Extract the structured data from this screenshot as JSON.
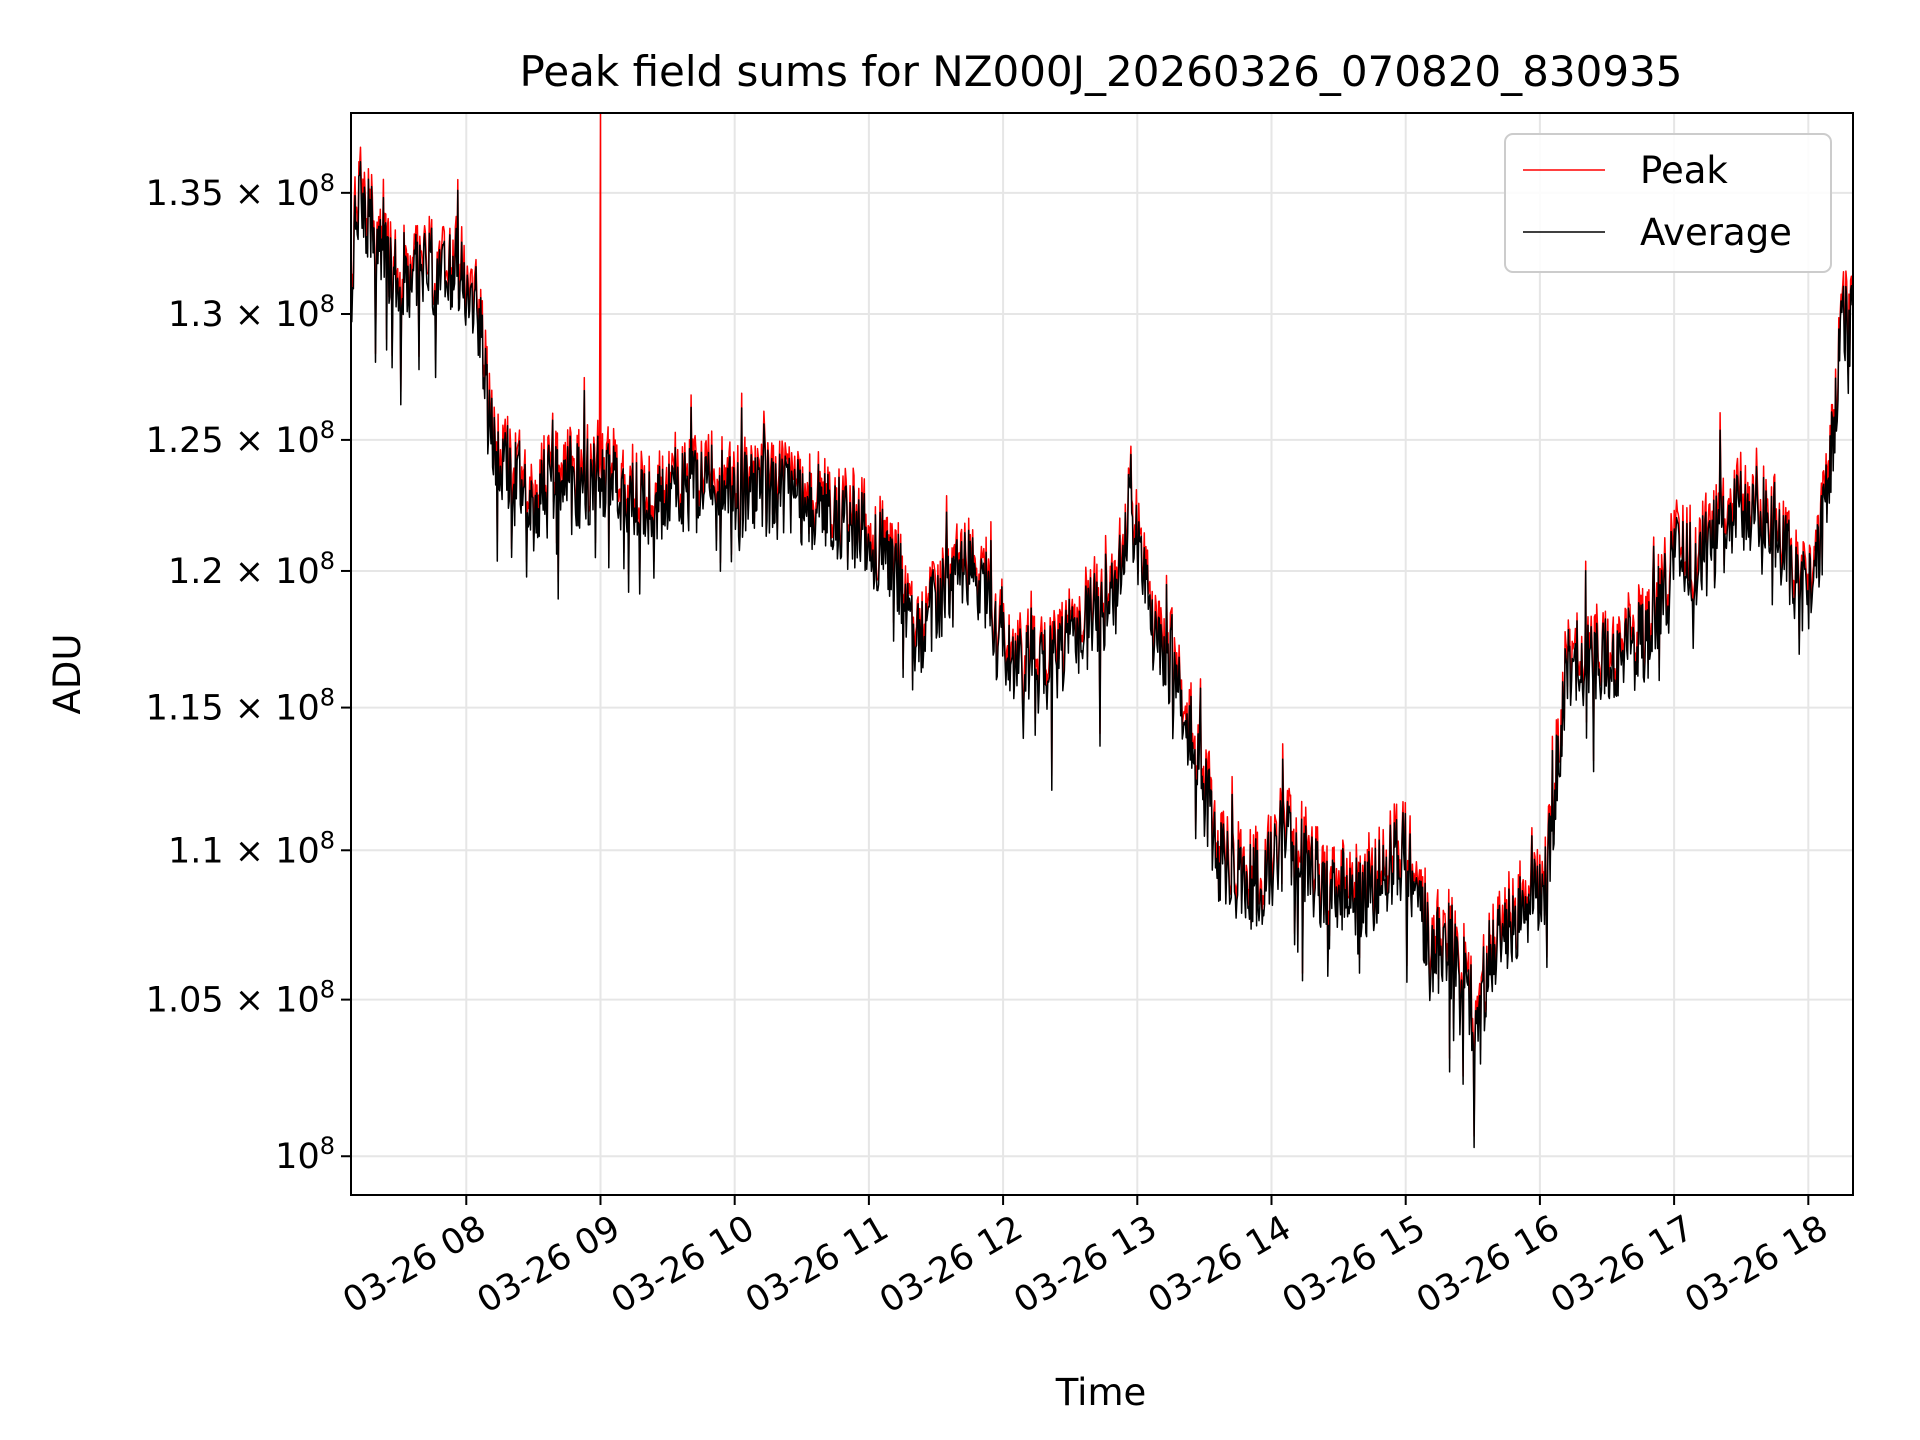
{
  "chart_data": {
    "type": "line",
    "title": "Peak field sums for NZ000J_20260326_070820_830935",
    "xlabel": "Time",
    "ylabel": "ADU",
    "yscale": "log",
    "ylim": [
      98800000,
      138400000
    ],
    "xlim": [
      7.141,
      18.333
    ],
    "x_unit": "hours (2026-03-26)",
    "grid": true,
    "legend_position": "top-right",
    "x_ticks": [
      {
        "value": 8,
        "label": "03-26 08"
      },
      {
        "value": 9,
        "label": "03-26 09"
      },
      {
        "value": 10,
        "label": "03-26 10"
      },
      {
        "value": 11,
        "label": "03-26 11"
      },
      {
        "value": 12,
        "label": "03-26 12"
      },
      {
        "value": 13,
        "label": "03-26 13"
      },
      {
        "value": 14,
        "label": "03-26 14"
      },
      {
        "value": 15,
        "label": "03-26 15"
      },
      {
        "value": 16,
        "label": "03-26 16"
      },
      {
        "value": 17,
        "label": "03-26 17"
      },
      {
        "value": 18,
        "label": "03-26 18"
      }
    ],
    "y_ticks": [
      {
        "value": 100000000,
        "mantissa": "",
        "exponent": "8"
      },
      {
        "value": 105000000,
        "mantissa": "1.05",
        "exponent": "8"
      },
      {
        "value": 110000000,
        "mantissa": "1.1",
        "exponent": "8"
      },
      {
        "value": 115000000,
        "mantissa": "1.15",
        "exponent": "8"
      },
      {
        "value": 120000000,
        "mantissa": "1.2",
        "exponent": "8"
      },
      {
        "value": 125000000,
        "mantissa": "1.25",
        "exponent": "8"
      },
      {
        "value": 130000000,
        "mantissa": "1.3",
        "exponent": "8"
      },
      {
        "value": 135000000,
        "mantissa": "1.35",
        "exponent": "8"
      }
    ],
    "series": [
      {
        "name": "Peak",
        "color": "#ff0000",
        "peak_offset_fraction": 0.004,
        "spike": {
          "x": 9.0,
          "y": 138400000
        }
      },
      {
        "name": "Average",
        "color": "#000000"
      }
    ],
    "trend": {
      "x": [
        7.14,
        7.2,
        7.35,
        7.6,
        7.9,
        8.1,
        8.2,
        8.5,
        9.0,
        9.3,
        9.6,
        10.0,
        10.3,
        10.6,
        10.9,
        11.2,
        11.35,
        11.6,
        11.8,
        12.1,
        12.3,
        12.6,
        12.85,
        12.95,
        13.1,
        13.3,
        13.45,
        13.6,
        13.9,
        14.1,
        14.4,
        14.7,
        14.9,
        15.0,
        15.2,
        15.35,
        15.5,
        15.7,
        15.9,
        16.05,
        16.2,
        16.5,
        16.8,
        17.0,
        17.2,
        17.4,
        17.6,
        17.8,
        17.95,
        18.05,
        18.15,
        18.25,
        18.333
      ],
      "y": [
        131000000,
        135000000,
        132500000,
        131500000,
        132000000,
        130000000,
        124500000,
        122800000,
        123500000,
        122500000,
        123200000,
        123000000,
        122800000,
        122500000,
        121500000,
        120300000,
        117500000,
        119500000,
        120000000,
        116500000,
        116300000,
        118000000,
        119000000,
        122500000,
        118000000,
        115800000,
        113200000,
        109500000,
        108600000,
        110500000,
        108600000,
        108500000,
        109500000,
        110000000,
        106500000,
        107000000,
        104500000,
        107300000,
        108000000,
        108900000,
        116600000,
        116800000,
        117400000,
        120500000,
        120300000,
        121800000,
        122400000,
        120800000,
        119300000,
        119500000,
        123300000,
        129500000,
        129800000
      ]
    },
    "noise_amplitude_fraction": 0.014,
    "sample_count": 1900,
    "random_seed": 830935
  }
}
